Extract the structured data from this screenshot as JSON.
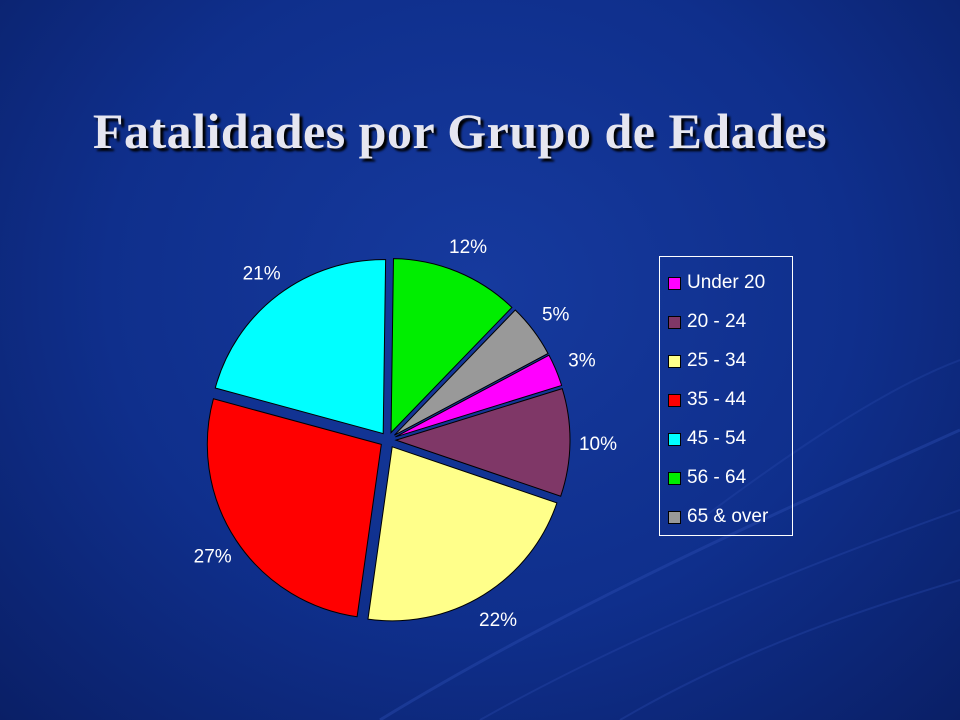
{
  "slide": {
    "title": "Fatalidades por Grupo de Edades"
  },
  "chart_data": {
    "type": "pie",
    "exploded": true,
    "legend_position": "right",
    "slices": [
      {
        "label": "Under 20",
        "value": 3,
        "display": "3%",
        "color": "#ff00ff"
      },
      {
        "label": "20 - 24",
        "value": 10,
        "display": "10%",
        "color": "#7f3767"
      },
      {
        "label": "25 - 34",
        "value": 22,
        "display": "22%",
        "color": "#ffff8a"
      },
      {
        "label": "35 - 44",
        "value": 27,
        "display": "27%",
        "color": "#ff0000"
      },
      {
        "label": "45 - 54",
        "value": 21,
        "display": "21%",
        "color": "#00ffff"
      },
      {
        "label": "56 - 64",
        "value": 12,
        "display": "12%",
        "color": "#00ee00"
      },
      {
        "label": "65 & over",
        "value": 5,
        "display": "5%",
        "color": "#999999"
      }
    ]
  }
}
